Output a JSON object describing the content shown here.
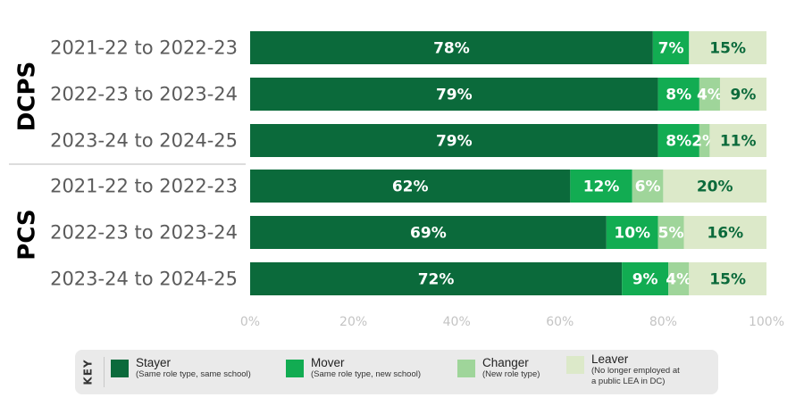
{
  "chart_data": {
    "type": "bar",
    "orientation": "horizontal",
    "stacked": true,
    "groups": [
      {
        "name": "DCPS",
        "categories": [
          "2021-22 to 2022-23",
          "2022-23 to 2023-24",
          "2023-24 to 2024-25"
        ],
        "series": [
          {
            "name": "Stayer",
            "values": [
              78,
              79,
              79
            ],
            "labels": [
              "78%",
              "79%",
              "79%"
            ]
          },
          {
            "name": "Mover",
            "values": [
              7,
              8,
              8
            ],
            "labels": [
              "7%",
              "8%",
              "8%"
            ]
          },
          {
            "name": "Changer",
            "values": [
              0,
              4,
              2
            ],
            "labels": [
              "",
              "4%",
              "2%"
            ]
          },
          {
            "name": "Leaver",
            "values": [
              15,
              9,
              11
            ],
            "labels": [
              "15%",
              "9%",
              "11%"
            ]
          }
        ]
      },
      {
        "name": "PCS",
        "categories": [
          "2021-22 to 2022-23",
          "2022-23 to 2023-24",
          "2023-24 to 2024-25"
        ],
        "series": [
          {
            "name": "Stayer",
            "values": [
              62,
              69,
              72
            ],
            "labels": [
              "62%",
              "69%",
              "72%"
            ]
          },
          {
            "name": "Mover",
            "values": [
              12,
              10,
              9
            ],
            "labels": [
              "12%",
              "10%",
              "9%"
            ]
          },
          {
            "name": "Changer",
            "values": [
              6,
              5,
              4
            ],
            "labels": [
              "6%",
              "5%",
              "4%"
            ]
          },
          {
            "name": "Leaver",
            "values": [
              20,
              16,
              15
            ],
            "labels": [
              "20%",
              "16%",
              "15%"
            ]
          }
        ]
      }
    ],
    "xlim": [
      0,
      100
    ],
    "x_ticks": [
      "0%",
      "20%",
      "40%",
      "60%",
      "80%",
      "100%"
    ],
    "colors": {
      "Stayer": "#0b6a3b",
      "Mover": "#12ac52",
      "Changer": "#9fd59a",
      "Leaver": "#dce9c9"
    },
    "value_label_colors": {
      "Stayer": "#ffffff",
      "Mover": "#ffffff",
      "Changer": "#ffffff",
      "Leaver": "#0b6a3b"
    },
    "grid": false,
    "legend_position": "bottom"
  },
  "key": {
    "title": "KEY",
    "items": [
      {
        "name": "Stayer",
        "desc_lines": [
          "(Same role type, same school)"
        ],
        "color": "#0b6a3b"
      },
      {
        "name": "Mover",
        "desc_lines": [
          "(Same role type, new school)"
        ],
        "color": "#12ac52"
      },
      {
        "name": "Changer",
        "desc_lines": [
          "(New role type)"
        ],
        "color": "#9fd59a"
      },
      {
        "name": "Leaver",
        "desc_lines": [
          "(No longer employed at",
          "a public LEA in DC)"
        ],
        "color": "#dce9c9"
      }
    ]
  }
}
